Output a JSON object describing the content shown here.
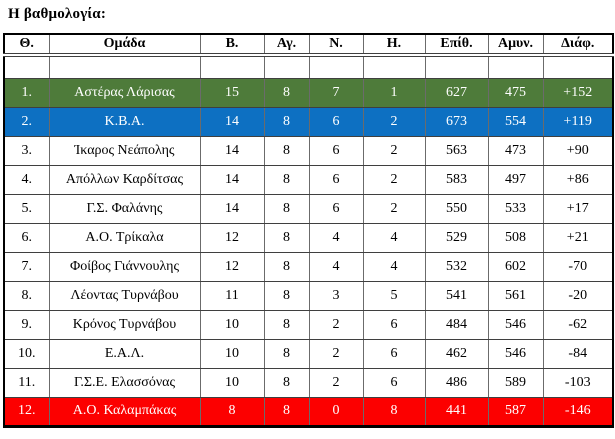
{
  "page": {
    "title": "Η βαθμολογία:"
  },
  "table": {
    "headers": [
      "Θ.",
      "Ομάδα",
      "Β.",
      "Αγ.",
      "Ν.",
      "Η.",
      "Επίθ.",
      "Αμυν.",
      "Διάφ."
    ],
    "highlight_colors": {
      "green": "#4e7b3a",
      "blue": "#0d70c2",
      "red": "#fc0000"
    },
    "rows": [
      {
        "pos": "1.",
        "team": "Αστέρας Λάρισας",
        "b": "15",
        "ag": "8",
        "n": "7",
        "h": "1",
        "epith": "627",
        "amyn": "475",
        "diaf": "+152",
        "highlight": "green"
      },
      {
        "pos": "2.",
        "team": "Κ.Β.Α.",
        "b": "14",
        "ag": "8",
        "n": "6",
        "h": "2",
        "epith": "673",
        "amyn": "554",
        "diaf": "+119",
        "highlight": "blue"
      },
      {
        "pos": "3.",
        "team": "Ίκαρος Νεάπολης",
        "b": "14",
        "ag": "8",
        "n": "6",
        "h": "2",
        "epith": "563",
        "amyn": "473",
        "diaf": "+90",
        "highlight": ""
      },
      {
        "pos": "4.",
        "team": "Απόλλων Καρδίτσας",
        "b": "14",
        "ag": "8",
        "n": "6",
        "h": "2",
        "epith": "583",
        "amyn": "497",
        "diaf": "+86",
        "highlight": ""
      },
      {
        "pos": "5.",
        "team": "Γ.Σ. Φαλάνης",
        "b": "14",
        "ag": "8",
        "n": "6",
        "h": "2",
        "epith": "550",
        "amyn": "533",
        "diaf": "+17",
        "highlight": ""
      },
      {
        "pos": "6.",
        "team": "Α.Ο. Τρίκαλα",
        "b": "12",
        "ag": "8",
        "n": "4",
        "h": "4",
        "epith": "529",
        "amyn": "508",
        "diaf": "+21",
        "highlight": ""
      },
      {
        "pos": "7.",
        "team": "Φοίβος Γιάννουλης",
        "b": "12",
        "ag": "8",
        "n": "4",
        "h": "4",
        "epith": "532",
        "amyn": "602",
        "diaf": "-70",
        "highlight": ""
      },
      {
        "pos": "8.",
        "team": "Λέοντας Τυρνάβου",
        "b": "11",
        "ag": "8",
        "n": "3",
        "h": "5",
        "epith": "541",
        "amyn": "561",
        "diaf": "-20",
        "highlight": ""
      },
      {
        "pos": "9.",
        "team": "Κρόνος Τυρνάβου",
        "b": "10",
        "ag": "8",
        "n": "2",
        "h": "6",
        "epith": "484",
        "amyn": "546",
        "diaf": "-62",
        "highlight": ""
      },
      {
        "pos": "10.",
        "team": "Ε.Α.Λ.",
        "b": "10",
        "ag": "8",
        "n": "2",
        "h": "6",
        "epith": "462",
        "amyn": "546",
        "diaf": "-84",
        "highlight": ""
      },
      {
        "pos": "11.",
        "team": "Γ.Σ.Ε. Ελασσόνας",
        "b": "10",
        "ag": "8",
        "n": "2",
        "h": "6",
        "epith": "486",
        "amyn": "589",
        "diaf": "-103",
        "highlight": ""
      },
      {
        "pos": "12.",
        "team": "Α.Ο. Καλαμπάκας",
        "b": "8",
        "ag": "8",
        "n": "0",
        "h": "8",
        "epith": "441",
        "amyn": "587",
        "diaf": "-146",
        "highlight": "red"
      }
    ]
  }
}
